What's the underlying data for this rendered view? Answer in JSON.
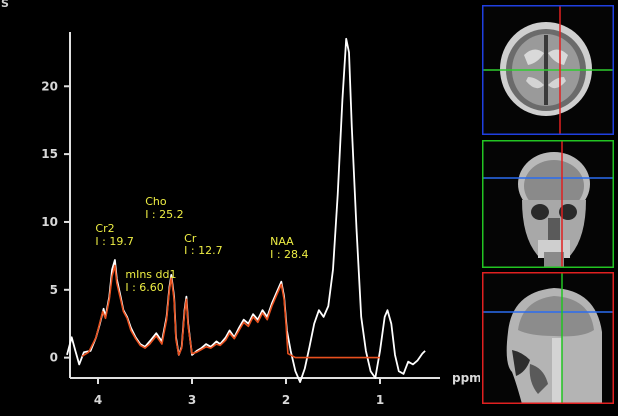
{
  "header": {
    "corner_label": "S"
  },
  "chart_data": {
    "type": "line",
    "xlabel": "ppm",
    "ylabel": "",
    "xlim": [
      4.35,
      0.45
    ],
    "ylim": [
      -1.5,
      24
    ],
    "y_ticks": [
      "0",
      "5",
      "10",
      "15",
      "20"
    ],
    "x_ticks": [
      "4",
      "3",
      "2",
      "1"
    ],
    "series": [
      {
        "color": "#ffffff",
        "points": [
          [
            4.33,
            0.2
          ],
          [
            4.28,
            1.5
          ],
          [
            4.24,
            0.5
          ],
          [
            4.2,
            -0.5
          ],
          [
            4.15,
            0.4
          ],
          [
            4.08,
            0.5
          ],
          [
            4.02,
            1.5
          ],
          [
            3.98,
            2.5
          ],
          [
            3.94,
            3.6
          ],
          [
            3.92,
            3.0
          ],
          [
            3.88,
            4.5
          ],
          [
            3.85,
            6.5
          ],
          [
            3.82,
            7.2
          ],
          [
            3.8,
            5.8
          ],
          [
            3.76,
            4.5
          ],
          [
            3.73,
            3.5
          ],
          [
            3.69,
            3.0
          ],
          [
            3.65,
            2.2
          ],
          [
            3.6,
            1.5
          ],
          [
            3.55,
            1.0
          ],
          [
            3.5,
            0.8
          ],
          [
            3.45,
            1.2
          ],
          [
            3.38,
            1.8
          ],
          [
            3.32,
            1.2
          ],
          [
            3.27,
            3.0
          ],
          [
            3.24,
            5.2
          ],
          [
            3.22,
            6.1
          ],
          [
            3.19,
            4.5
          ],
          [
            3.17,
            1.5
          ],
          [
            3.14,
            0.2
          ],
          [
            3.11,
            0.8
          ],
          [
            3.08,
            3.5
          ],
          [
            3.06,
            4.5
          ],
          [
            3.04,
            2.5
          ],
          [
            3.0,
            0.2
          ],
          [
            2.95,
            0.5
          ],
          [
            2.9,
            0.7
          ],
          [
            2.85,
            1.0
          ],
          [
            2.8,
            0.8
          ],
          [
            2.74,
            1.2
          ],
          [
            2.7,
            1.0
          ],
          [
            2.64,
            1.5
          ],
          [
            2.6,
            2.0
          ],
          [
            2.55,
            1.5
          ],
          [
            2.5,
            2.2
          ],
          [
            2.45,
            2.8
          ],
          [
            2.4,
            2.5
          ],
          [
            2.35,
            3.2
          ],
          [
            2.3,
            2.8
          ],
          [
            2.25,
            3.5
          ],
          [
            2.2,
            3.0
          ],
          [
            2.15,
            4.0
          ],
          [
            2.1,
            4.8
          ],
          [
            2.05,
            5.6
          ],
          [
            2.02,
            4.5
          ],
          [
            1.99,
            2.0
          ],
          [
            1.95,
            0.5
          ],
          [
            1.9,
            -1.0
          ],
          [
            1.85,
            -1.8
          ],
          [
            1.8,
            -0.8
          ],
          [
            1.75,
            0.8
          ],
          [
            1.7,
            2.5
          ],
          [
            1.65,
            3.5
          ],
          [
            1.6,
            3.0
          ],
          [
            1.55,
            3.8
          ],
          [
            1.5,
            6.5
          ],
          [
            1.45,
            12.0
          ],
          [
            1.4,
            19.0
          ],
          [
            1.36,
            23.5
          ],
          [
            1.33,
            22.5
          ],
          [
            1.3,
            17.0
          ],
          [
            1.25,
            9.5
          ],
          [
            1.2,
            3.0
          ],
          [
            1.15,
            0.5
          ],
          [
            1.1,
            -1.0
          ],
          [
            1.05,
            -1.5
          ],
          [
            1.0,
            0.5
          ],
          [
            0.95,
            3.0
          ],
          [
            0.92,
            3.5
          ],
          [
            0.88,
            2.5
          ],
          [
            0.84,
            0.2
          ],
          [
            0.8,
            -1.0
          ],
          [
            0.75,
            -1.2
          ],
          [
            0.7,
            -0.3
          ],
          [
            0.65,
            -0.5
          ],
          [
            0.6,
            -0.2
          ],
          [
            0.55,
            0.3
          ],
          [
            0.52,
            0.5
          ]
        ]
      },
      {
        "color": "#e8501e",
        "points": [
          [
            4.17,
            0.1
          ],
          [
            4.1,
            0.4
          ],
          [
            4.02,
            1.5
          ],
          [
            3.98,
            2.6
          ],
          [
            3.95,
            3.4
          ],
          [
            3.92,
            2.9
          ],
          [
            3.88,
            4.3
          ],
          [
            3.85,
            6.0
          ],
          [
            3.82,
            6.8
          ],
          [
            3.8,
            5.5
          ],
          [
            3.76,
            4.3
          ],
          [
            3.73,
            3.4
          ],
          [
            3.69,
            2.9
          ],
          [
            3.65,
            2.0
          ],
          [
            3.6,
            1.4
          ],
          [
            3.55,
            0.9
          ],
          [
            3.5,
            0.7
          ],
          [
            3.45,
            1.0
          ],
          [
            3.38,
            1.6
          ],
          [
            3.32,
            1.0
          ],
          [
            3.27,
            2.8
          ],
          [
            3.24,
            5.0
          ],
          [
            3.22,
            5.9
          ],
          [
            3.19,
            4.3
          ],
          [
            3.17,
            1.3
          ],
          [
            3.14,
            0.2
          ],
          [
            3.11,
            0.7
          ],
          [
            3.08,
            3.3
          ],
          [
            3.06,
            4.3
          ],
          [
            3.04,
            2.3
          ],
          [
            3.0,
            0.3
          ],
          [
            2.95,
            0.4
          ],
          [
            2.9,
            0.6
          ],
          [
            2.85,
            0.8
          ],
          [
            2.8,
            0.7
          ],
          [
            2.74,
            1.0
          ],
          [
            2.7,
            0.9
          ],
          [
            2.64,
            1.3
          ],
          [
            2.6,
            1.8
          ],
          [
            2.55,
            1.4
          ],
          [
            2.5,
            2.0
          ],
          [
            2.45,
            2.6
          ],
          [
            2.4,
            2.3
          ],
          [
            2.35,
            3.0
          ],
          [
            2.3,
            2.6
          ],
          [
            2.25,
            3.3
          ],
          [
            2.2,
            2.8
          ],
          [
            2.15,
            3.8
          ],
          [
            2.1,
            4.6
          ],
          [
            2.05,
            5.4
          ],
          [
            2.02,
            4.3
          ],
          [
            2.0,
            2.5
          ],
          [
            1.98,
            0.3
          ],
          [
            1.9,
            0.0
          ],
          [
            1.6,
            0.0
          ],
          [
            1.3,
            0.0
          ],
          [
            1.0,
            0.0
          ]
        ]
      }
    ],
    "annotations": [
      {
        "name": "Cr2",
        "value": "I : 19.7",
        "ppm": 3.9,
        "color": "#eeee44"
      },
      {
        "name": "Cho",
        "value": "I : 25.2",
        "ppm": 3.2,
        "color": "#eeee44"
      },
      {
        "name": "Cr",
        "value": "I : 12.7",
        "ppm": 3.03,
        "color": "#eeee44"
      },
      {
        "name": "mIns dd1",
        "value": "I : 6.60",
        "ppm": 3.56,
        "color": "#eeee44"
      },
      {
        "name": "NAA",
        "value": "I : 28.4",
        "ppm": 2.02,
        "color": "#eeee44"
      }
    ]
  },
  "localizers": [
    {
      "view": "axial",
      "border_color": "#1f3fe0",
      "crosshair_h_color": "#2ecc2e",
      "crosshair_v_color": "#e02020"
    },
    {
      "view": "coronal",
      "border_color": "#22c422",
      "crosshair_h_color": "#2b6cf0",
      "crosshair_v_color": "#e02020"
    },
    {
      "view": "sagittal",
      "border_color": "#e02020",
      "crosshair_h_color": "#2b6cf0",
      "crosshair_v_color": "#22c422"
    }
  ]
}
